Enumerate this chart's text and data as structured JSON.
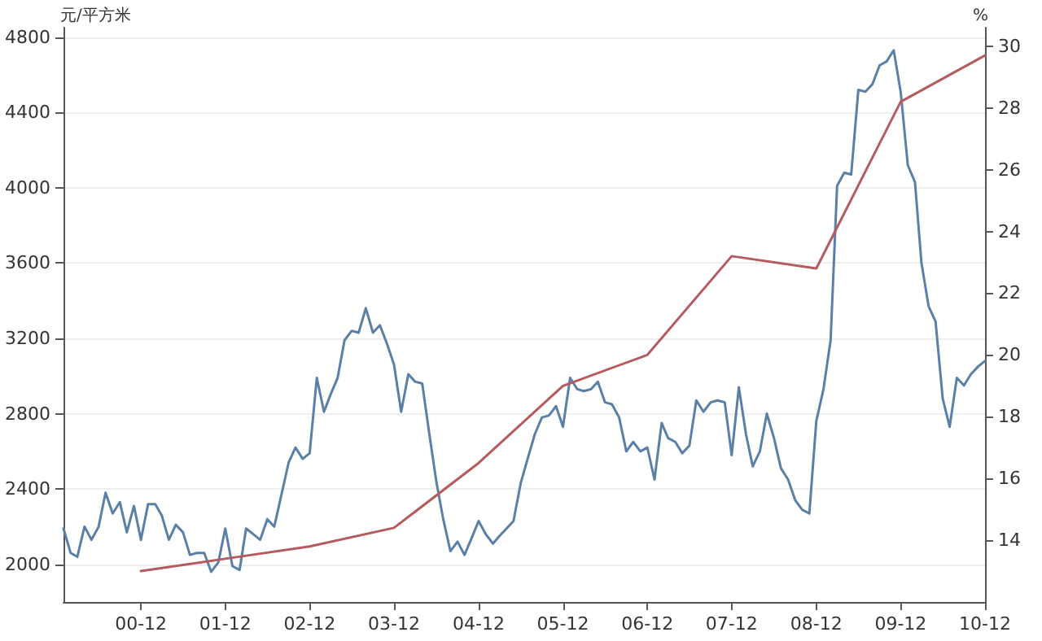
{
  "chart_data": {
    "type": "line",
    "ylabel": "元/平方米",
    "y2label": "%",
    "xlim": [
      "2000-01",
      "2010-12"
    ],
    "xticks": [
      {
        "value": "2000-12",
        "label": "00-12"
      },
      {
        "value": "2001-12",
        "label": "01-12"
      },
      {
        "value": "2002-12",
        "label": "02-12"
      },
      {
        "value": "2003-12",
        "label": "03-12"
      },
      {
        "value": "2004-12",
        "label": "04-12"
      },
      {
        "value": "2005-12",
        "label": "05-12"
      },
      {
        "value": "2006-12",
        "label": "06-12"
      },
      {
        "value": "2007-12",
        "label": "07-12"
      },
      {
        "value": "2008-12",
        "label": "08-12"
      },
      {
        "value": "2009-12",
        "label": "09-12"
      },
      {
        "value": "2010-12",
        "label": "10-12"
      }
    ],
    "ylim": [
      1800,
      4850
    ],
    "yticks": [
      2000,
      2400,
      2800,
      3200,
      3600,
      4000,
      4400,
      4800
    ],
    "y2lim": [
      12,
      30.6
    ],
    "y2ticks": [
      14,
      16,
      18,
      20,
      22,
      24,
      26,
      28,
      30
    ],
    "grid": "y",
    "marker": "none",
    "line_style": "solid",
    "series": [
      {
        "color": "#5b80a8",
        "x": [
          "2000-01",
          "2000-02",
          "2000-03",
          "2000-04",
          "2000-05",
          "2000-06",
          "2000-07",
          "2000-08",
          "2000-09",
          "2000-10",
          "2000-11",
          "2000-12",
          "2001-01",
          "2001-02",
          "2001-03",
          "2001-04",
          "2001-05",
          "2001-06",
          "2001-07",
          "2001-08",
          "2001-09",
          "2001-10",
          "2001-11",
          "2001-12",
          "2002-01",
          "2002-02",
          "2002-03",
          "2002-04",
          "2002-05",
          "2002-06",
          "2002-07",
          "2002-08",
          "2002-09",
          "2002-10",
          "2002-11",
          "2002-12",
          "2003-01",
          "2003-02",
          "2003-03",
          "2003-04",
          "2003-05",
          "2003-06",
          "2003-07",
          "2003-08",
          "2003-09",
          "2003-10",
          "2003-11",
          "2003-12",
          "2004-01",
          "2004-02",
          "2004-03",
          "2004-04",
          "2004-05",
          "2004-06",
          "2004-07",
          "2004-08",
          "2004-09",
          "2004-10",
          "2004-11",
          "2004-12",
          "2005-01",
          "2005-02",
          "2005-03",
          "2005-04",
          "2005-05",
          "2005-06",
          "2005-07",
          "2005-08",
          "2005-09",
          "2005-10",
          "2005-11",
          "2005-12",
          "2006-01",
          "2006-02",
          "2006-03",
          "2006-04",
          "2006-05",
          "2006-06",
          "2006-07",
          "2006-08",
          "2006-09",
          "2006-10",
          "2006-11",
          "2006-12",
          "2007-01",
          "2007-02",
          "2007-03",
          "2007-04",
          "2007-05",
          "2007-06",
          "2007-07",
          "2007-08",
          "2007-09",
          "2007-10",
          "2007-11",
          "2007-12",
          "2008-01",
          "2008-02",
          "2008-03",
          "2008-04",
          "2008-05",
          "2008-06",
          "2008-07",
          "2008-08",
          "2008-09",
          "2008-10",
          "2008-11",
          "2008-12",
          "2009-01",
          "2009-02",
          "2009-03",
          "2009-04",
          "2009-05",
          "2009-06",
          "2009-07",
          "2009-08",
          "2009-09",
          "2009-10",
          "2009-11",
          "2009-12",
          "2010-01",
          "2010-02",
          "2010-03",
          "2010-04",
          "2010-05",
          "2010-06",
          "2010-07",
          "2010-08",
          "2010-09",
          "2010-10",
          "2010-11",
          "2010-12"
        ],
        "values": [
          2190,
          2060,
          2040,
          2200,
          2130,
          2200,
          2380,
          2270,
          2330,
          2170,
          2310,
          2130,
          2320,
          2320,
          2260,
          2130,
          2210,
          2170,
          2050,
          2060,
          2060,
          1960,
          2010,
          2190,
          1990,
          1970,
          2190,
          2160,
          2130,
          2240,
          2200,
          2370,
          2540,
          2620,
          2560,
          2590,
          2990,
          2810,
          2900,
          2990,
          3190,
          3240,
          3230,
          3360,
          3230,
          3270,
          3170,
          3060,
          2810,
          3010,
          2970,
          2960,
          2700,
          2440,
          2240,
          2070,
          2120,
          2050,
          2140,
          2230,
          2160,
          2110,
          2150,
          2190,
          2230,
          2430,
          2560,
          2690,
          2780,
          2790,
          2840,
          2730,
          2990,
          2930,
          2920,
          2930,
          2970,
          2860,
          2850,
          2780,
          2600,
          2650,
          2600,
          2620,
          2450,
          2750,
          2670,
          2650,
          2590,
          2630,
          2870,
          2810,
          2860,
          2870,
          2860,
          2580,
          2940,
          2690,
          2520,
          2600,
          2800,
          2670,
          2510,
          2450,
          2340,
          2290,
          2270,
          2760,
          2930,
          3190,
          4010,
          4080,
          4070,
          4520,
          4510,
          4550,
          4650,
          4670,
          4730,
          4510,
          4120,
          4030,
          3600,
          3370,
          3290,
          2880,
          2730,
          2990,
          2950,
          3010,
          3050,
          3080
        ]
      },
      {
        "color": "#b55a5e",
        "axis": "y2",
        "x": [
          "2000-12",
          "2001-12",
          "2002-12",
          "2003-12",
          "2004-12",
          "2005-12",
          "2006-12",
          "2007-12",
          "2008-12",
          "2009-12",
          "2010-12"
        ],
        "values": [
          13.0,
          13.4,
          13.8,
          14.4,
          16.5,
          19.0,
          20.0,
          23.2,
          22.8,
          28.2,
          29.7
        ]
      }
    ]
  }
}
